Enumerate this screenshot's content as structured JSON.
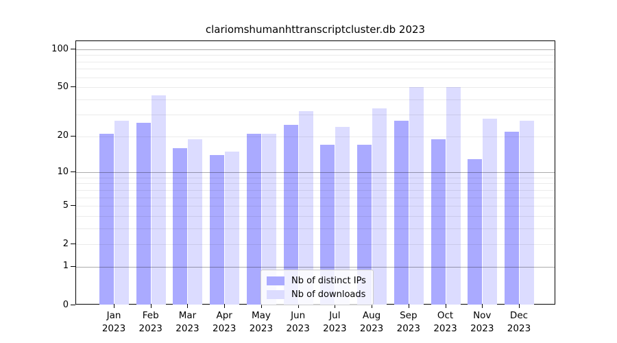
{
  "title": "clariomshumanhttranscriptcluster.db 2023",
  "chart_data": {
    "type": "bar",
    "title": "clariomshumanhttranscriptcluster.db 2023",
    "categories": [
      {
        "month": "Jan",
        "year": "2023"
      },
      {
        "month": "Feb",
        "year": "2023"
      },
      {
        "month": "Mar",
        "year": "2023"
      },
      {
        "month": "Apr",
        "year": "2023"
      },
      {
        "month": "May",
        "year": "2023"
      },
      {
        "month": "Jun",
        "year": "2023"
      },
      {
        "month": "Jul",
        "year": "2023"
      },
      {
        "month": "Aug",
        "year": "2023"
      },
      {
        "month": "Sep",
        "year": "2023"
      },
      {
        "month": "Oct",
        "year": "2023"
      },
      {
        "month": "Nov",
        "year": "2023"
      },
      {
        "month": "Dec",
        "year": "2023"
      }
    ],
    "series": [
      {
        "name": "Nb of distinct IPs",
        "color": "#aaaaff",
        "values": [
          21,
          26,
          16,
          14,
          21,
          25,
          17,
          17,
          27,
          19,
          13,
          22
        ]
      },
      {
        "name": "Nb of downloads",
        "color": "#dcdcff",
        "values": [
          27,
          43,
          19,
          15,
          21,
          32,
          24,
          34,
          50,
          50,
          28,
          27
        ]
      }
    ],
    "xlabel": "",
    "ylabel": "",
    "y_scale": "log1p",
    "y_ticks": [
      0,
      1,
      2,
      5,
      10,
      20,
      50,
      100
    ],
    "ylim": [
      0,
      100
    ],
    "grid": "minor log gridlines, darker lines at powers of 10",
    "legend_position": "lower center"
  },
  "legend": {
    "items": [
      "Nb of distinct IPs",
      "Nb of downloads"
    ]
  }
}
